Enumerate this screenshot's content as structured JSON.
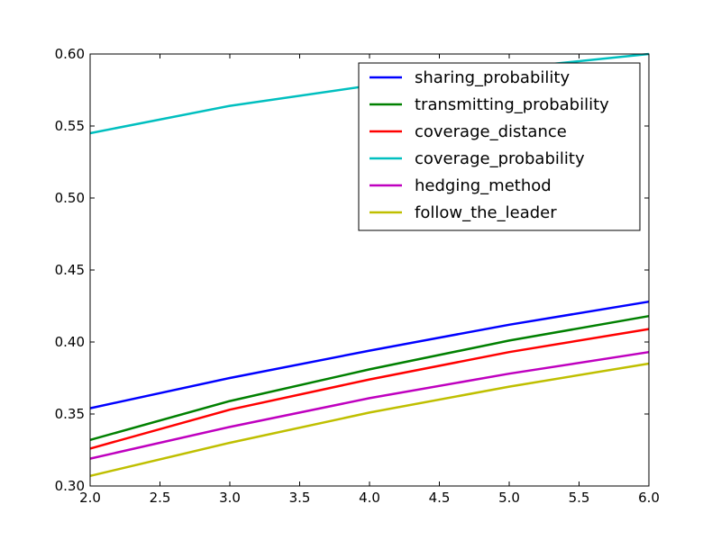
{
  "chart_data": {
    "type": "line",
    "title": "",
    "xlabel": "",
    "ylabel": "",
    "x": [
      2,
      3,
      4,
      5,
      6
    ],
    "xlim": [
      2.0,
      6.0
    ],
    "ylim": [
      0.3,
      0.6
    ],
    "xticks": [
      "2.0",
      "2.5",
      "3.0",
      "3.5",
      "4.0",
      "4.5",
      "5.0",
      "5.5",
      "6.0"
    ],
    "yticks": [
      "0.30",
      "0.35",
      "0.40",
      "0.45",
      "0.50",
      "0.55",
      "0.60"
    ],
    "grid": false,
    "legend_position": "top-right",
    "series": [
      {
        "name": "sharing_probability",
        "color": "#0000ff",
        "values": [
          0.354,
          0.375,
          0.394,
          0.412,
          0.428
        ]
      },
      {
        "name": "transmitting_probability",
        "color": "#008000",
        "values": [
          0.332,
          0.359,
          0.381,
          0.401,
          0.418
        ]
      },
      {
        "name": "coverage_distance",
        "color": "#ff0000",
        "values": [
          0.326,
          0.353,
          0.374,
          0.393,
          0.409
        ]
      },
      {
        "name": "coverage_probability",
        "color": "#00bfbf",
        "values": [
          0.545,
          0.564,
          0.578,
          0.59,
          0.6
        ]
      },
      {
        "name": "hedging_method",
        "color": "#bf00bf",
        "values": [
          0.319,
          0.341,
          0.361,
          0.378,
          0.393
        ]
      },
      {
        "name": "follow_the_leader",
        "color": "#bfbf00",
        "values": [
          0.307,
          0.33,
          0.351,
          0.369,
          0.385
        ]
      }
    ]
  }
}
